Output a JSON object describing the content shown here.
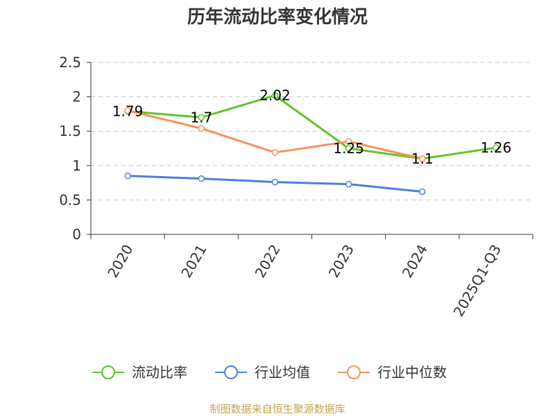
{
  "chart_data": {
    "type": "line",
    "title": "历年流动比率变化情况",
    "categories": [
      "2020",
      "2021",
      "2022",
      "2023",
      "2024",
      "2025Q1-Q3"
    ],
    "ylim": [
      0,
      2.5
    ],
    "yticks": [
      "0",
      "0.5",
      "1",
      "1.5",
      "2",
      "2.5"
    ],
    "grid": true,
    "legend_position": "bottom",
    "series": [
      {
        "name": "流动比率",
        "color": "#5ec528",
        "values": [
          1.79,
          1.7,
          2.02,
          1.25,
          1.1,
          1.26
        ],
        "labels": [
          "1.79",
          "1.7",
          "2.02",
          "1.25",
          "1.1",
          "1.26"
        ]
      },
      {
        "name": "行业均值",
        "color": "#4a7fd9",
        "values": [
          0.85,
          0.81,
          0.76,
          0.73,
          0.62,
          null
        ]
      },
      {
        "name": "行业中位数",
        "color": "#f5925a",
        "values": [
          1.8,
          1.54,
          1.19,
          1.35,
          1.1,
          null
        ]
      }
    ],
    "source": "制图数据来自恒生聚源数据库"
  }
}
